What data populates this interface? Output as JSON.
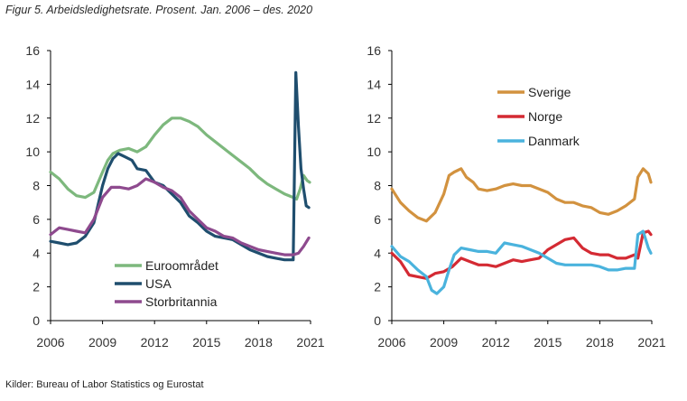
{
  "figure": {
    "title": "Figur 5. Arbeidsledighetsrate. Prosent. Jan. 2006 – des. 2020",
    "source": "Kilder: Bureau of Labor Statistics og Eurostat"
  },
  "chart_data": [
    {
      "type": "line",
      "title": "",
      "xlabel": "",
      "ylabel": "",
      "xlim": [
        2006,
        2021
      ],
      "ylim": [
        0,
        16
      ],
      "x_ticks": [
        "2006",
        "2009",
        "2012",
        "2015",
        "2018",
        "2021"
      ],
      "y_ticks": [
        "0",
        "2",
        "4",
        "6",
        "8",
        "10",
        "12",
        "14",
        "16"
      ],
      "legend_position": "bottom-center",
      "series": [
        {
          "name": "Euroområdet",
          "color": "#7db87d",
          "x": [
            2006,
            2006.5,
            2007,
            2007.5,
            2008,
            2008.5,
            2009,
            2009.3,
            2009.6,
            2010,
            2010.5,
            2011,
            2011.5,
            2012,
            2012.5,
            2013,
            2013.5,
            2014,
            2014.5,
            2015,
            2015.5,
            2016,
            2016.5,
            2017,
            2017.5,
            2018,
            2018.5,
            2019,
            2019.5,
            2020,
            2020.2,
            2020.4,
            2020.6,
            2020.8,
            2020.95
          ],
          "values": [
            8.8,
            8.4,
            7.8,
            7.4,
            7.3,
            7.6,
            8.8,
            9.5,
            9.9,
            10.1,
            10.2,
            10.0,
            10.3,
            11.0,
            11.6,
            12.0,
            12.0,
            11.8,
            11.5,
            11.0,
            10.6,
            10.2,
            9.8,
            9.4,
            9.0,
            8.5,
            8.1,
            7.8,
            7.5,
            7.3,
            7.2,
            7.8,
            8.6,
            8.3,
            8.2
          ]
        },
        {
          "name": "USA",
          "color": "#1f4e6e",
          "x": [
            2006,
            2006.5,
            2007,
            2007.5,
            2008,
            2008.5,
            2009,
            2009.3,
            2009.6,
            2009.9,
            2010.3,
            2010.7,
            2011,
            2011.5,
            2012,
            2012.5,
            2013,
            2013.5,
            2014,
            2014.5,
            2015,
            2015.5,
            2016,
            2016.5,
            2017,
            2017.5,
            2018,
            2018.5,
            2019,
            2019.5,
            2020,
            2020.15,
            2020.3,
            2020.45,
            2020.6,
            2020.75,
            2020.9
          ],
          "values": [
            4.7,
            4.6,
            4.5,
            4.6,
            5.0,
            5.8,
            8.0,
            9.0,
            9.6,
            9.9,
            9.7,
            9.5,
            9.0,
            8.9,
            8.2,
            8.0,
            7.5,
            7.0,
            6.2,
            5.8,
            5.3,
            5.0,
            4.9,
            4.8,
            4.5,
            4.2,
            4.0,
            3.8,
            3.7,
            3.6,
            3.6,
            14.7,
            11.5,
            9.0,
            7.8,
            6.8,
            6.7
          ]
        },
        {
          "name": "Storbritannia",
          "color": "#8e4a8e",
          "x": [
            2006,
            2006.5,
            2007,
            2007.5,
            2008,
            2008.5,
            2009,
            2009.5,
            2010,
            2010.5,
            2011,
            2011.5,
            2012,
            2012.5,
            2013,
            2013.5,
            2014,
            2014.5,
            2015,
            2015.5,
            2016,
            2016.5,
            2017,
            2017.5,
            2018,
            2018.5,
            2019,
            2019.5,
            2020,
            2020.3,
            2020.6,
            2020.9
          ],
          "values": [
            5.1,
            5.5,
            5.4,
            5.3,
            5.2,
            6.0,
            7.3,
            7.9,
            7.9,
            7.8,
            8.0,
            8.4,
            8.2,
            7.9,
            7.7,
            7.3,
            6.5,
            6.0,
            5.5,
            5.3,
            5.0,
            4.9,
            4.6,
            4.4,
            4.2,
            4.1,
            4.0,
            3.9,
            3.9,
            4.0,
            4.4,
            4.9
          ]
        }
      ]
    },
    {
      "type": "line",
      "title": "",
      "xlabel": "",
      "ylabel": "",
      "xlim": [
        2006,
        2021
      ],
      "ylim": [
        0,
        16
      ],
      "x_ticks": [
        "2006",
        "2009",
        "2012",
        "2015",
        "2018",
        "2021"
      ],
      "y_ticks": [
        "0",
        "2",
        "4",
        "6",
        "8",
        "10",
        "12",
        "14",
        "16"
      ],
      "legend_position": "top-left",
      "series": [
        {
          "name": "Sverige",
          "color": "#d2923f",
          "x": [
            2006,
            2006.5,
            2007,
            2007.5,
            2008,
            2008.5,
            2009,
            2009.3,
            2009.6,
            2010,
            2010.3,
            2010.7,
            2011,
            2011.5,
            2012,
            2012.5,
            2013,
            2013.5,
            2014,
            2014.5,
            2015,
            2015.5,
            2016,
            2016.5,
            2017,
            2017.5,
            2018,
            2018.5,
            2019,
            2019.5,
            2020,
            2020.2,
            2020.5,
            2020.8,
            2020.95
          ],
          "values": [
            7.8,
            7.0,
            6.5,
            6.1,
            5.9,
            6.4,
            7.5,
            8.6,
            8.8,
            9.0,
            8.5,
            8.2,
            7.8,
            7.7,
            7.8,
            8.0,
            8.1,
            8.0,
            8.0,
            7.8,
            7.6,
            7.2,
            7.0,
            7.0,
            6.8,
            6.7,
            6.4,
            6.3,
            6.5,
            6.8,
            7.2,
            8.5,
            9.0,
            8.7,
            8.2
          ]
        },
        {
          "name": "Norge",
          "color": "#d42a33",
          "x": [
            2006,
            2006.5,
            2007,
            2007.5,
            2008,
            2008.5,
            2009,
            2009.5,
            2010,
            2010.5,
            2011,
            2011.5,
            2012,
            2012.5,
            2013,
            2013.5,
            2014,
            2014.5,
            2015,
            2015.5,
            2016,
            2016.5,
            2017,
            2017.5,
            2018,
            2018.5,
            2019,
            2019.5,
            2020,
            2020.2,
            2020.5,
            2020.8,
            2020.95
          ],
          "values": [
            4.0,
            3.5,
            2.7,
            2.6,
            2.5,
            2.8,
            2.9,
            3.2,
            3.7,
            3.5,
            3.3,
            3.3,
            3.2,
            3.4,
            3.6,
            3.5,
            3.6,
            3.7,
            4.2,
            4.5,
            4.8,
            4.9,
            4.3,
            4.0,
            3.9,
            3.9,
            3.7,
            3.7,
            3.9,
            3.7,
            5.2,
            5.3,
            5.1
          ]
        },
        {
          "name": "Danmark",
          "color": "#4ab3dd",
          "x": [
            2006,
            2006.5,
            2007,
            2007.5,
            2008,
            2008.3,
            2008.6,
            2009,
            2009.3,
            2009.6,
            2010,
            2010.5,
            2011,
            2011.5,
            2012,
            2012.5,
            2013,
            2013.5,
            2014,
            2014.5,
            2015,
            2015.5,
            2016,
            2016.5,
            2017,
            2017.5,
            2018,
            2018.5,
            2019,
            2019.5,
            2020,
            2020.2,
            2020.5,
            2020.8,
            2020.95
          ],
          "values": [
            4.4,
            3.8,
            3.5,
            3.0,
            2.6,
            1.8,
            1.6,
            2.0,
            3.0,
            3.9,
            4.3,
            4.2,
            4.1,
            4.1,
            4.0,
            4.6,
            4.5,
            4.4,
            4.2,
            4.0,
            3.7,
            3.4,
            3.3,
            3.3,
            3.3,
            3.3,
            3.2,
            3.0,
            3.0,
            3.1,
            3.1,
            5.1,
            5.3,
            4.3,
            4.0
          ]
        }
      ]
    }
  ]
}
